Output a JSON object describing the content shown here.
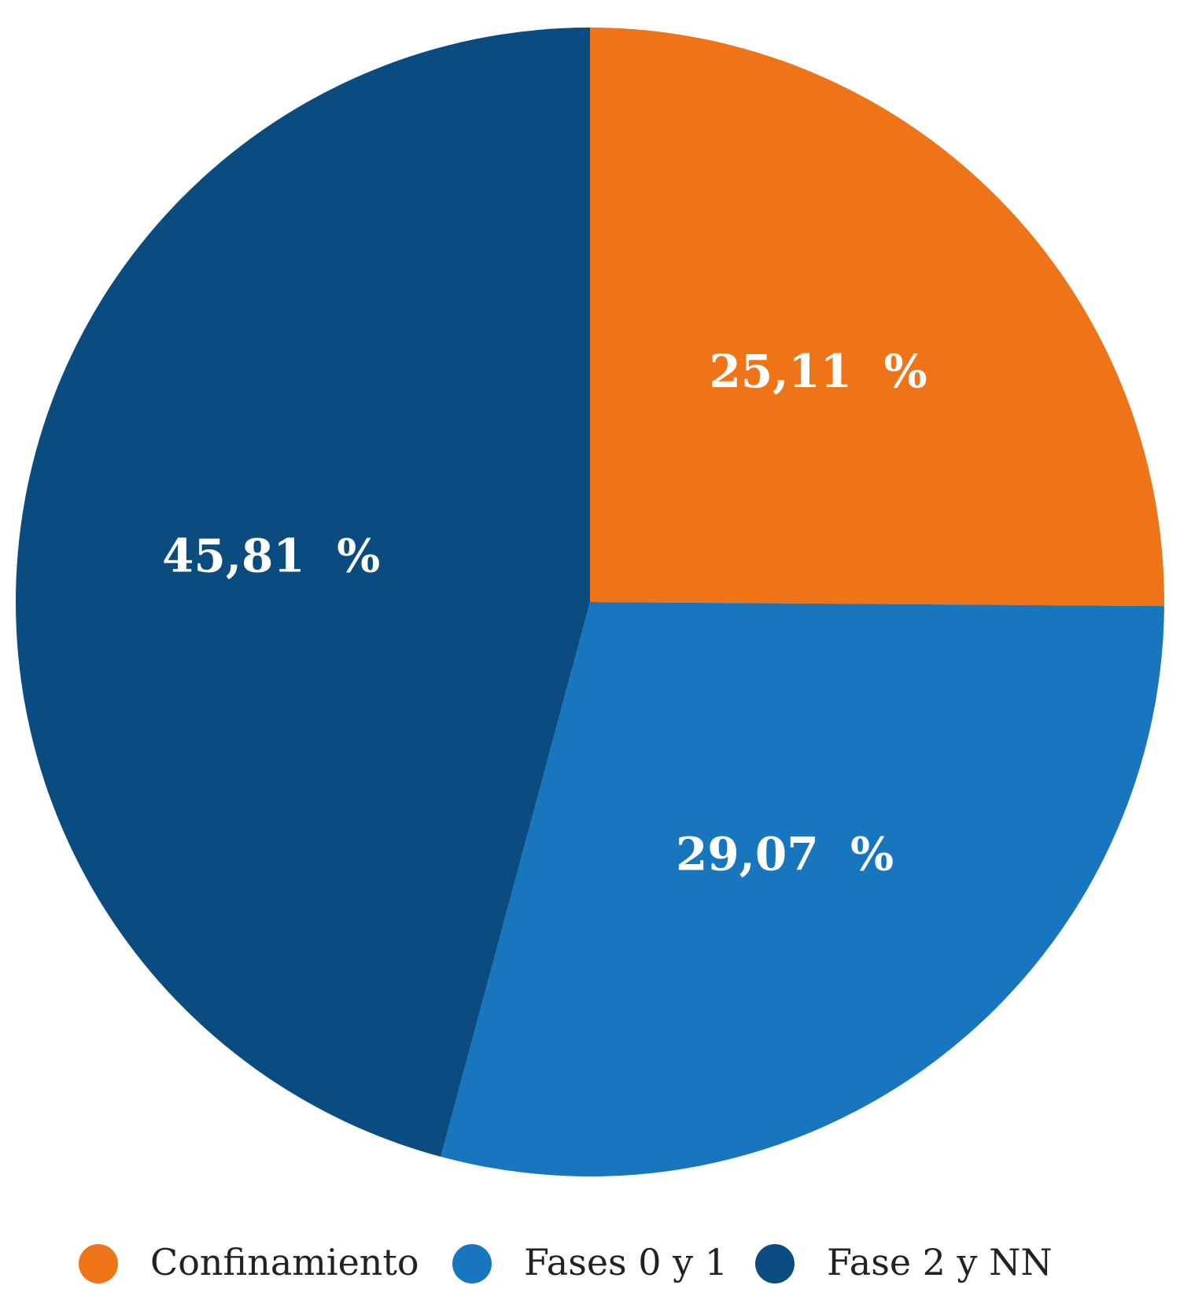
{
  "chart_data": {
    "type": "pie",
    "categories": [
      "Confinamiento",
      "Fases 0 y 1",
      "Fase 2 y NN"
    ],
    "values": [
      25.11,
      29.07,
      45.81
    ],
    "value_labels": [
      "25,11  %",
      "29,07  %",
      "45,81  %"
    ],
    "colors": [
      "#ef7418",
      "#1776bd",
      "#0b4c80"
    ],
    "legend": "bottom"
  }
}
